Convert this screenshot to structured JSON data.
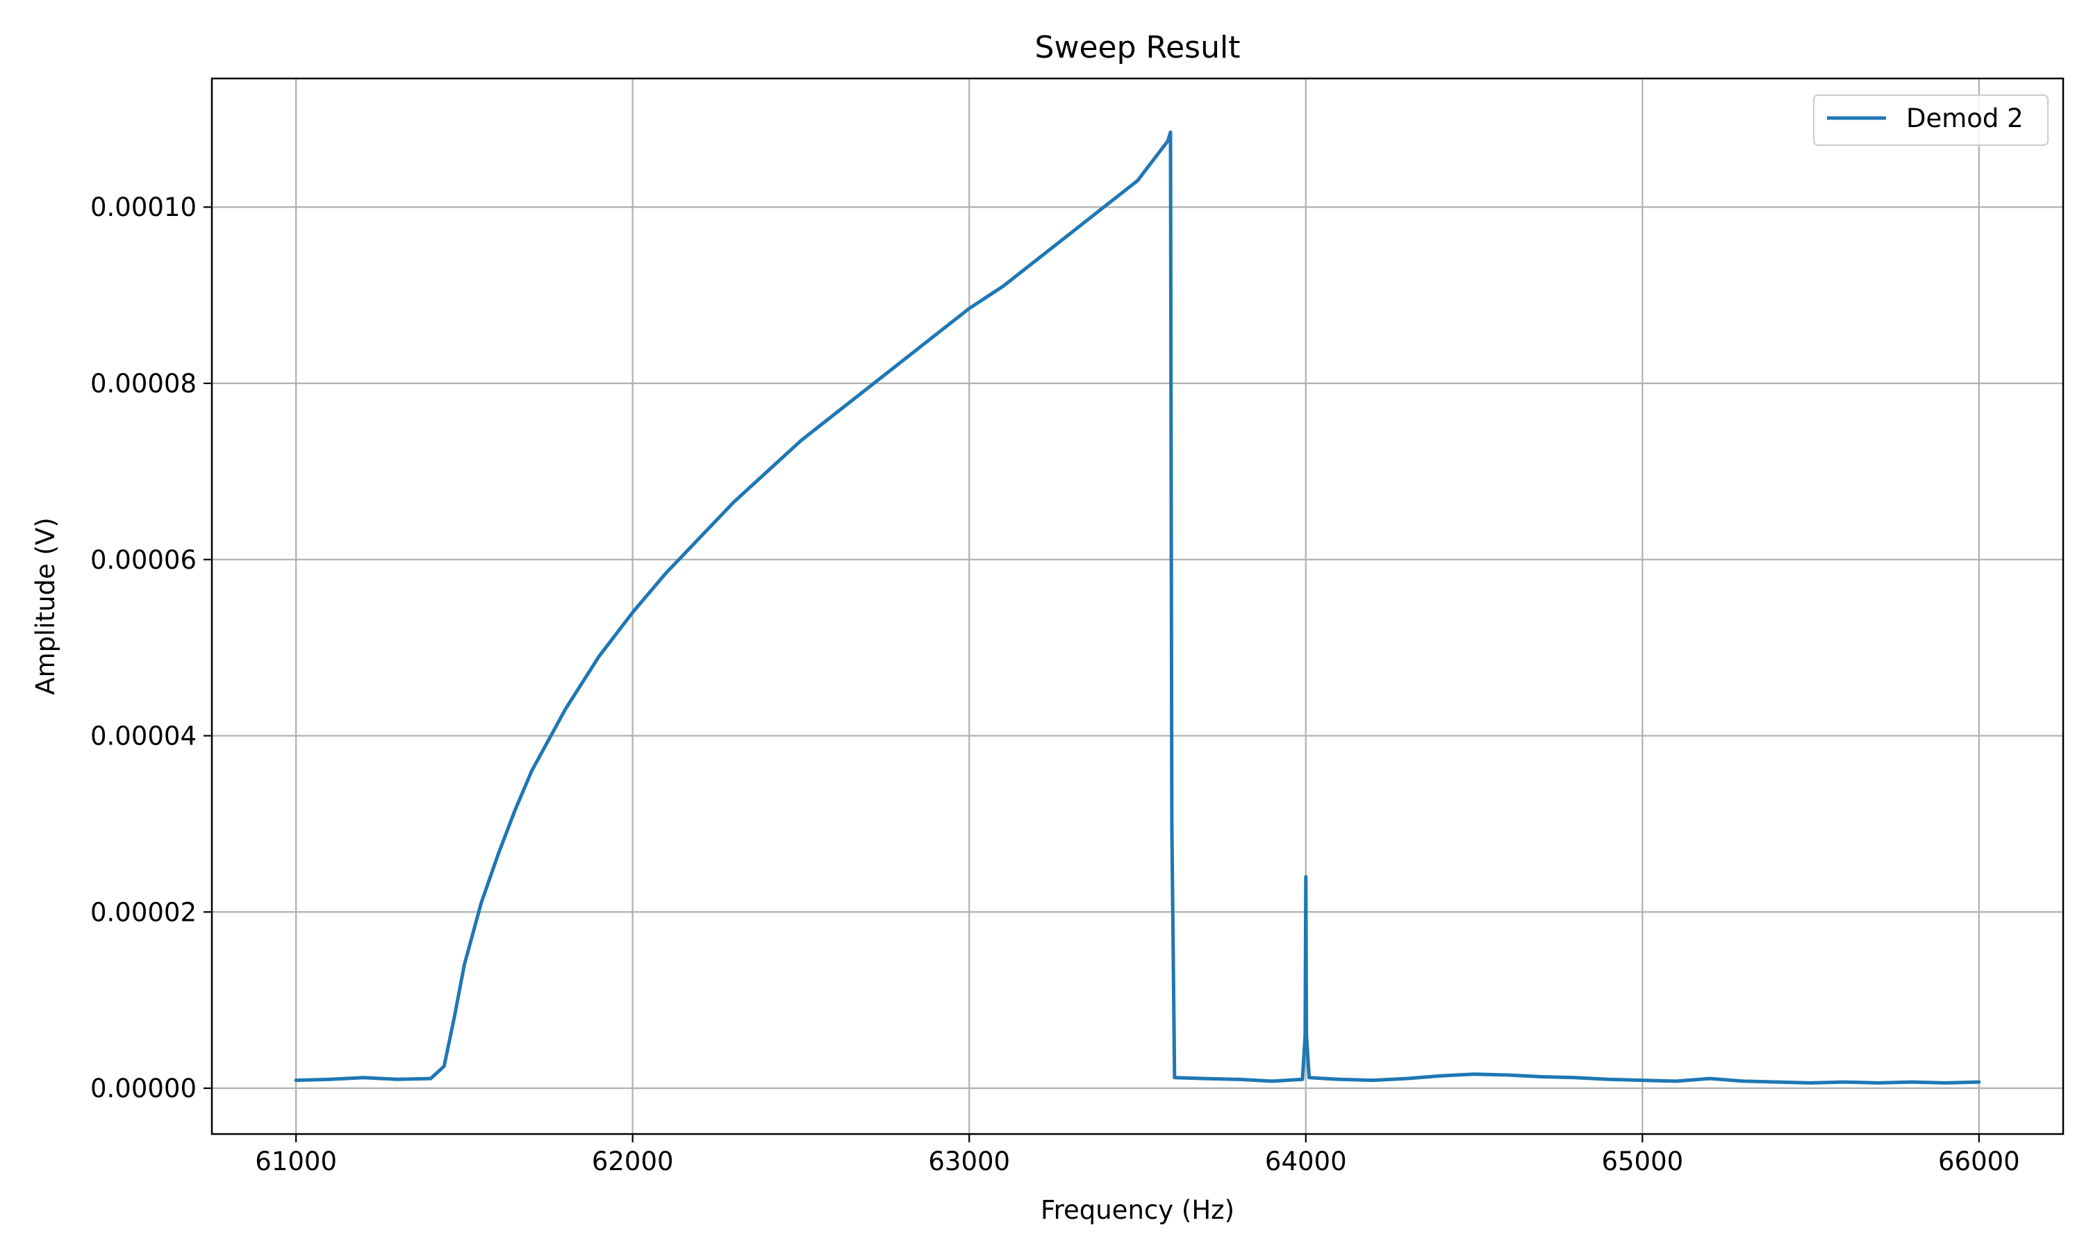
{
  "chart_data": {
    "type": "line",
    "title": "Sweep Result",
    "xlabel": "Frequency (Hz)",
    "ylabel": "Amplitude (V)",
    "xlim": [
      60750,
      66250
    ],
    "ylim": [
      -5.2e-06,
      0.0001146
    ],
    "xticks": [
      61000,
      62000,
      63000,
      64000,
      65000,
      66000
    ],
    "xtick_labels": [
      "61000",
      "62000",
      "63000",
      "64000",
      "65000",
      "66000"
    ],
    "yticks": [
      0,
      2e-05,
      4e-05,
      6e-05,
      8e-05,
      0.0001
    ],
    "ytick_labels": [
      "0.00000",
      "0.00002",
      "0.00004",
      "0.00006",
      "0.00008",
      "0.00010"
    ],
    "grid": true,
    "legend": {
      "position": "top-right",
      "entries": [
        "Demod 2"
      ]
    },
    "colors": {
      "series": "#1f77b4",
      "grid": "#b0b0b0"
    },
    "series": [
      {
        "name": "Demod 2",
        "color": "#1f77b4",
        "x": [
          61000,
          61100,
          61200,
          61300,
          61400,
          61440,
          61470,
          61500,
          61550,
          61600,
          61650,
          61700,
          61800,
          61900,
          62000,
          62100,
          62200,
          62300,
          62400,
          62500,
          62600,
          62700,
          62800,
          62900,
          63000,
          63100,
          63200,
          63300,
          63400,
          63500,
          63590,
          63598,
          63602,
          63610,
          63700,
          63800,
          63900,
          63990,
          63998,
          64000,
          64002,
          64010,
          64100,
          64200,
          64300,
          64400,
          64500,
          64600,
          64700,
          64800,
          64900,
          65000,
          65100,
          65200,
          65300,
          65400,
          65500,
          65600,
          65700,
          65800,
          65900,
          66000
        ],
        "y": [
          9e-07,
          1e-06,
          1.2e-06,
          1e-06,
          1.1e-06,
          2.5e-06,
          8e-06,
          1.4e-05,
          2.1e-05,
          2.65e-05,
          3.15e-05,
          3.6e-05,
          4.3e-05,
          4.9e-05,
          5.4e-05,
          5.85e-05,
          6.25e-05,
          6.65e-05,
          7e-05,
          7.35e-05,
          7.65e-05,
          7.95e-05,
          8.25e-05,
          8.55e-05,
          8.85e-05,
          9.1e-05,
          9.4e-05,
          9.7e-05,
          0.0001,
          0.000103,
          0.0001075,
          0.0001085,
          3e-05,
          1.2e-06,
          1.1e-06,
          1e-06,
          8e-07,
          1e-06,
          6e-06,
          2.4e-05,
          6e-06,
          1.2e-06,
          1e-06,
          9e-07,
          1.1e-06,
          1.4e-06,
          1.6e-06,
          1.5e-06,
          1.3e-06,
          1.2e-06,
          1e-06,
          9e-07,
          8e-07,
          1.1e-06,
          8e-07,
          7e-07,
          6e-07,
          7e-07,
          6e-07,
          7e-07,
          6e-07,
          7e-07
        ]
      }
    ]
  }
}
